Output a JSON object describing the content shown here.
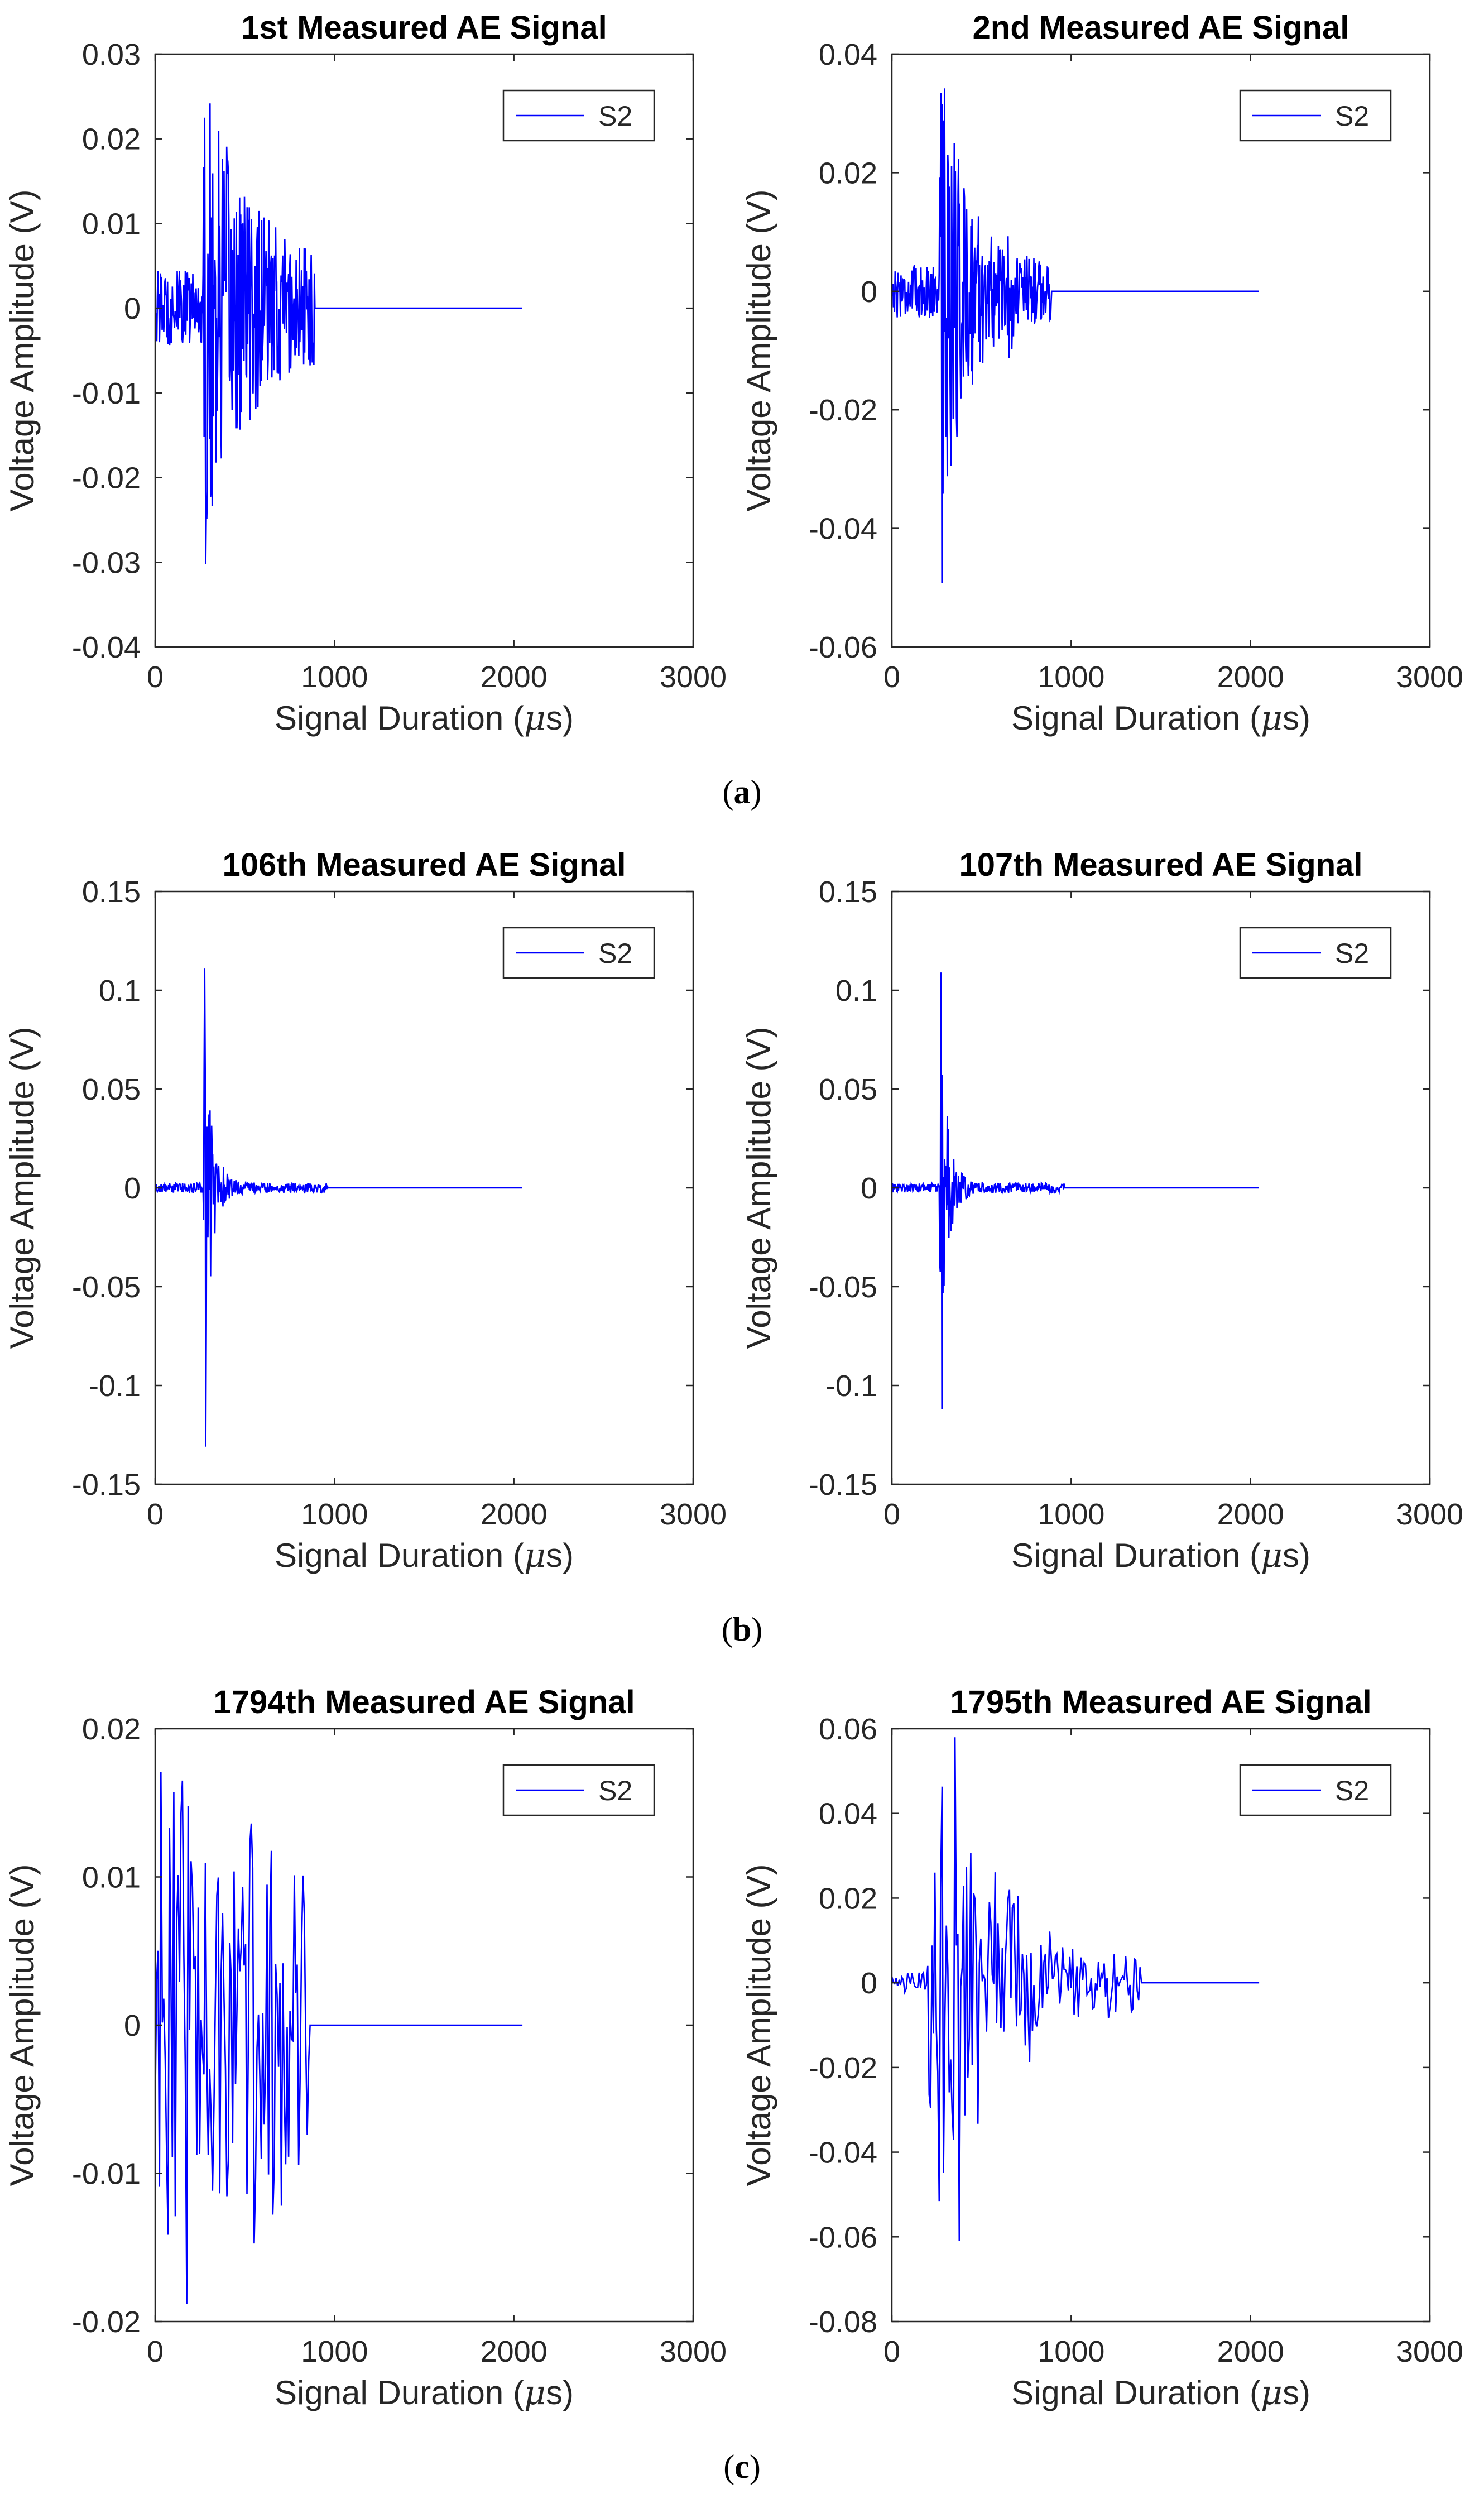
{
  "figure": {
    "panel_labels": [
      "a",
      "b",
      "c"
    ]
  },
  "colors": {
    "line": "#0000ff",
    "axis": "#262626",
    "text": "#262626",
    "title": "#000000"
  },
  "chart_data": [
    {
      "type": "line",
      "panel": "a",
      "title": "1st Measured AE Signal",
      "xlabel": "Signal Duration (μs)",
      "ylabel": "Voltage Amplitude (V)",
      "xlim": [
        0,
        3000
      ],
      "ylim": [
        -0.04,
        0.03
      ],
      "xticks": [
        0,
        1000,
        2000,
        3000
      ],
      "xtick_labels": [
        "0",
        "1000",
        "2000",
        "3000"
      ],
      "yticks": [
        -0.04,
        -0.03,
        -0.02,
        -0.01,
        0,
        0.01,
        0.02,
        0.03
      ],
      "ytick_labels": [
        "-0.04",
        "-0.03",
        "-0.02",
        "-0.01",
        "0",
        "0.01",
        "0.02",
        "0.03"
      ],
      "legend": [
        "S2"
      ],
      "legend_position": "top-right",
      "series": [
        {
          "name": "S2",
          "signal": {
            "onset": 270,
            "end": 890,
            "total": 2048,
            "peak": 0.0225,
            "trough": -0.0302,
            "noise": 0.0045,
            "decay": 260,
            "burst2_at": 650,
            "burst2_amp": 0.007
          }
        }
      ]
    },
    {
      "type": "line",
      "panel": "a",
      "title": "2nd Measured AE Signal",
      "xlabel": "Signal Duration (μs)",
      "ylabel": "Voltage Amplitude (V)",
      "xlim": [
        0,
        3000
      ],
      "ylim": [
        -0.06,
        0.04
      ],
      "xticks": [
        0,
        1000,
        2000,
        3000
      ],
      "xtick_labels": [
        "0",
        "1000",
        "2000",
        "3000"
      ],
      "yticks": [
        -0.06,
        -0.04,
        -0.02,
        0,
        0.02,
        0.04
      ],
      "ytick_labels": [
        "-0.06",
        "-0.04",
        "-0.02",
        "0",
        "0.02",
        "0.04"
      ],
      "legend": [
        "S2"
      ],
      "legend_position": "top-right",
      "series": [
        {
          "name": "S2",
          "signal": {
            "onset": 265,
            "end": 890,
            "total": 2048,
            "peak": 0.0335,
            "trough": -0.0492,
            "noise": 0.0045,
            "decay": 150,
            "burst2_at": 660,
            "burst2_amp": 0.0145
          }
        }
      ]
    },
    {
      "type": "line",
      "panel": "b",
      "title": "106th Measured AE Signal",
      "xlabel": "Signal Duration (μs)",
      "ylabel": "Voltage Amplitude (V)",
      "xlim": [
        0,
        3000
      ],
      "ylim": [
        -0.15,
        0.15
      ],
      "xticks": [
        0,
        1000,
        2000,
        3000
      ],
      "xtick_labels": [
        "0",
        "1000",
        "2000",
        "3000"
      ],
      "yticks": [
        -0.15,
        -0.1,
        -0.05,
        0,
        0.05,
        0.1,
        0.15
      ],
      "ytick_labels": [
        "-0.15",
        "-0.1",
        "-0.05",
        "0",
        "0.05",
        "0.1",
        "0.15"
      ],
      "legend": [
        "S2"
      ],
      "legend_position": "top-right",
      "series": [
        {
          "name": "S2",
          "signal": {
            "onset": 270,
            "end": 960,
            "total": 2048,
            "peak": 0.111,
            "trough": -0.131,
            "noise": 0.0025,
            "decay": 45,
            "burst2_at": 0,
            "burst2_amp": 0
          }
        }
      ]
    },
    {
      "type": "line",
      "panel": "b",
      "title": "107th Measured AE Signal",
      "xlabel": "Signal Duration (μs)",
      "ylabel": "Voltage Amplitude (V)",
      "xlim": [
        0,
        3000
      ],
      "ylim": [
        -0.15,
        0.15
      ],
      "xticks": [
        0,
        1000,
        2000,
        3000
      ],
      "xtick_labels": [
        "0",
        "1000",
        "2000",
        "3000"
      ],
      "yticks": [
        -0.15,
        -0.1,
        -0.05,
        0,
        0.05,
        0.1,
        0.15
      ],
      "ytick_labels": [
        "-0.15",
        "-0.1",
        "-0.05",
        "0",
        "0.05",
        "0.1",
        "0.15"
      ],
      "legend": [
        "S2"
      ],
      "legend_position": "top-right",
      "series": [
        {
          "name": "S2",
          "signal": {
            "onset": 265,
            "end": 960,
            "total": 2048,
            "peak": 0.109,
            "trough": -0.112,
            "noise": 0.0025,
            "decay": 45,
            "burst2_at": 0,
            "burst2_amp": 0
          }
        }
      ]
    },
    {
      "type": "line",
      "panel": "c",
      "title": "1794th Measured AE Signal",
      "xlabel": "Signal Duration (μs)",
      "ylabel": "Voltage Amplitude (V)",
      "xlim": [
        0,
        3000
      ],
      "ylim": [
        -0.02,
        0.02
      ],
      "xticks": [
        0,
        1000,
        2000,
        3000
      ],
      "xtick_labels": [
        "0",
        "1000",
        "2000",
        "3000"
      ],
      "yticks": [
        -0.02,
        -0.01,
        0,
        0.01,
        0.02
      ],
      "ytick_labels": [
        "-0.02",
        "-0.01",
        "0",
        "0.01",
        "0.02"
      ],
      "legend": [
        "S2"
      ],
      "legend_position": "top-right",
      "series": [
        {
          "name": "S2",
          "signal": {
            "onset": 0,
            "end": 860,
            "total": 2048,
            "peak": 0.0165,
            "trough": -0.0188,
            "noise": 0.011,
            "decay": 900,
            "burst2_at": 0,
            "burst2_amp": 0,
            "sparse": true
          }
        }
      ]
    },
    {
      "type": "line",
      "panel": "c",
      "title": "1795th Measured AE Signal",
      "xlabel": "Signal Duration (μs)",
      "ylabel": "Voltage Amplitude (V)",
      "xlim": [
        0,
        3000
      ],
      "ylim": [
        -0.08,
        0.06
      ],
      "xticks": [
        0,
        1000,
        2000,
        3000
      ],
      "xtick_labels": [
        "0",
        "1000",
        "2000",
        "3000"
      ],
      "yticks": [
        -0.08,
        -0.06,
        -0.04,
        -0.02,
        0,
        0.02,
        0.04,
        0.06
      ],
      "ytick_labels": [
        "-0.08",
        "-0.06",
        "-0.04",
        "-0.02",
        "0",
        "0.02",
        "0.04",
        "0.06"
      ],
      "legend": [
        "S2"
      ],
      "legend_position": "top-right",
      "series": [
        {
          "name": "S2",
          "signal": {
            "onset": 200,
            "end": 1390,
            "total": 2048,
            "peak": 0.058,
            "trough": -0.061,
            "noise": 0.004,
            "decay": 380,
            "burst2_at": 0,
            "burst2_amp": 0,
            "sparse": true,
            "late_start": 200
          }
        }
      ]
    }
  ]
}
